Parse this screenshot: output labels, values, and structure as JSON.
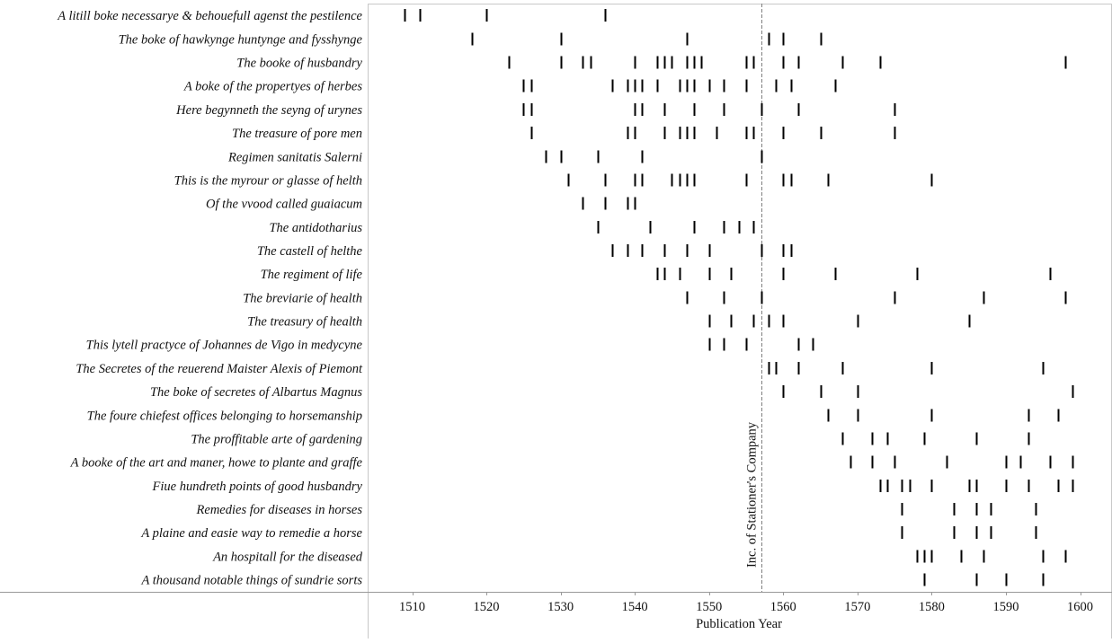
{
  "chart_data": {
    "type": "scatter",
    "xlabel": "Publication Year",
    "xlim": [
      1505,
      1603
    ],
    "x_ticks": [
      1510,
      1520,
      1530,
      1540,
      1550,
      1560,
      1570,
      1580,
      1590,
      1600
    ],
    "grid": false,
    "annotation": {
      "label": "Inc. of Stationer's Company",
      "x": 1557
    },
    "rows": [
      {
        "label": "A litill boke necessarye & behouefull agenst the pestilence",
        "years": [
          1509,
          1511,
          1520,
          1536
        ]
      },
      {
        "label": "The boke of hawkynge huntynge and fysshynge",
        "years": [
          1518,
          1530,
          1547,
          1558,
          1560,
          1565
        ]
      },
      {
        "label": "The booke of husbandry",
        "years": [
          1523,
          1530,
          1533,
          1534,
          1540,
          1543,
          1544,
          1545,
          1547,
          1548,
          1549,
          1555,
          1556,
          1560,
          1562,
          1568,
          1573,
          1598
        ]
      },
      {
        "label": "A boke of the propertyes of herbes",
        "years": [
          1525,
          1526,
          1537,
          1539,
          1540,
          1541,
          1543,
          1546,
          1547,
          1548,
          1550,
          1552,
          1555,
          1559,
          1561,
          1567
        ]
      },
      {
        "label": "Here begynneth the seyng of urynes",
        "years": [
          1525,
          1526,
          1540,
          1541,
          1544,
          1548,
          1552,
          1557,
          1562,
          1575
        ]
      },
      {
        "label": "The treasure of pore men",
        "years": [
          1526,
          1539,
          1540,
          1544,
          1546,
          1547,
          1548,
          1551,
          1555,
          1556,
          1560,
          1565,
          1575
        ]
      },
      {
        "label": "Regimen sanitatis Salerni",
        "years": [
          1528,
          1530,
          1535,
          1541,
          1557
        ]
      },
      {
        "label": "This is the myrour or glasse of helth",
        "years": [
          1531,
          1536,
          1540,
          1541,
          1545,
          1546,
          1547,
          1548,
          1555,
          1560,
          1561,
          1566,
          1580
        ]
      },
      {
        "label": "Of the vvood called guaiacum",
        "years": [
          1533,
          1536,
          1539,
          1540
        ]
      },
      {
        "label": "The antidotharius",
        "years": [
          1535,
          1542,
          1548,
          1552,
          1554,
          1556
        ]
      },
      {
        "label": "The castell of helthe",
        "years": [
          1537,
          1539,
          1541,
          1544,
          1547,
          1550,
          1557,
          1560,
          1561
        ]
      },
      {
        "label": "The regiment of life",
        "years": [
          1543,
          1544,
          1546,
          1550,
          1553,
          1560,
          1567,
          1578,
          1596
        ]
      },
      {
        "label": "The breviarie of health",
        "years": [
          1547,
          1552,
          1557,
          1575,
          1587,
          1598
        ]
      },
      {
        "label": "The treasury of health",
        "years": [
          1550,
          1553,
          1556,
          1558,
          1560,
          1570,
          1585
        ]
      },
      {
        "label": "This lytell practyce of Johannes de Vigo in medycyne",
        "years": [
          1550,
          1552,
          1555,
          1562,
          1564
        ]
      },
      {
        "label": "The Secretes of the reuerend Maister Alexis of Piemont",
        "years": [
          1558,
          1559,
          1562,
          1568,
          1580,
          1595
        ]
      },
      {
        "label": "The boke of secretes of Albartus Magnus",
        "years": [
          1560,
          1565,
          1570,
          1599
        ]
      },
      {
        "label": "The foure chiefest offices belonging to horsemanship",
        "years": [
          1566,
          1570,
          1580,
          1593,
          1597
        ]
      },
      {
        "label": "The proffitable arte of gardening",
        "years": [
          1568,
          1572,
          1574,
          1579,
          1586,
          1593
        ]
      },
      {
        "label": "A booke of the art and maner, howe to plante and graffe",
        "years": [
          1569,
          1572,
          1575,
          1582,
          1590,
          1592,
          1596,
          1599
        ]
      },
      {
        "label": "Fiue hundreth points of good husbandry",
        "years": [
          1573,
          1574,
          1576,
          1577,
          1580,
          1585,
          1586,
          1590,
          1593,
          1597,
          1599
        ]
      },
      {
        "label": "Remedies for diseases in horses",
        "years": [
          1576,
          1583,
          1586,
          1588,
          1594
        ]
      },
      {
        "label": "A plaine and easie way to remedie a horse",
        "years": [
          1576,
          1583,
          1586,
          1588,
          1594
        ]
      },
      {
        "label": "An hospitall for the diseased",
        "years": [
          1578,
          1579,
          1580,
          1584,
          1587,
          1595,
          1598
        ]
      },
      {
        "label": "A thousand notable things of sundrie sorts",
        "years": [
          1579,
          1586,
          1590,
          1595
        ]
      }
    ]
  }
}
